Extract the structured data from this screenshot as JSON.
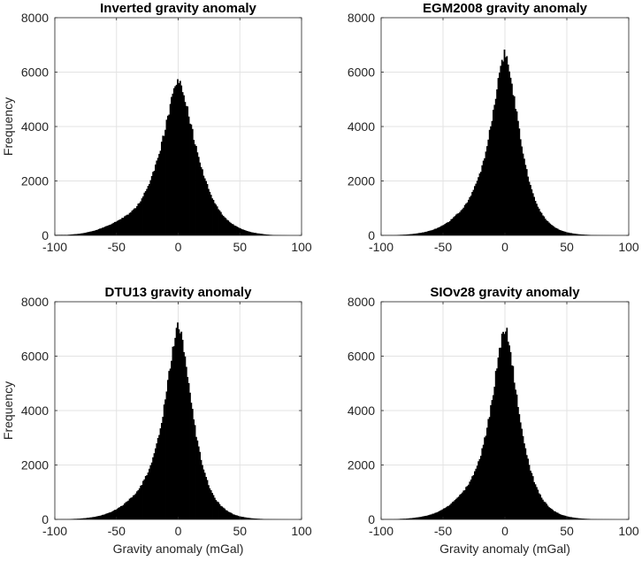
{
  "chart_data": [
    {
      "type": "bar",
      "title": "Inverted gravity anomaly",
      "xlabel": "",
      "ylabel": "Frequency",
      "xlim": [
        -100,
        100
      ],
      "ylim": [
        0,
        8000
      ],
      "xticks": [
        -100,
        -50,
        0,
        50,
        100
      ],
      "yticks": [
        0,
        2000,
        4000,
        6000,
        8000
      ],
      "xtick_labels": [
        "-100",
        "-50",
        "0",
        "50",
        "100"
      ],
      "ytick_labels": [
        "0",
        "2000",
        "4000",
        "6000",
        "8000"
      ],
      "grid": true,
      "bin_width": 1,
      "x": [
        -90,
        -85,
        -80,
        -75,
        -70,
        -65,
        -60,
        -55,
        -50,
        -45,
        -40,
        -35,
        -30,
        -25,
        -20,
        -15,
        -10,
        -5,
        -2,
        0,
        2,
        5,
        10,
        15,
        20,
        25,
        30,
        35,
        40,
        45,
        50,
        55,
        60,
        65,
        70,
        75,
        80,
        85,
        90
      ],
      "values": [
        20,
        40,
        60,
        100,
        150,
        220,
        300,
        400,
        520,
        650,
        800,
        1000,
        1300,
        1750,
        2350,
        3100,
        4050,
        5050,
        5550,
        5700,
        5600,
        5150,
        4100,
        3100,
        2300,
        1650,
        1150,
        800,
        550,
        380,
        260,
        170,
        110,
        70,
        40,
        20,
        10,
        5,
        0
      ]
    },
    {
      "type": "bar",
      "title": "EGM2008 gravity anomaly",
      "xlabel": "",
      "ylabel": "",
      "xlim": [
        -100,
        100
      ],
      "ylim": [
        0,
        8000
      ],
      "xticks": [
        -100,
        -50,
        0,
        50,
        100
      ],
      "yticks": [
        0,
        2000,
        4000,
        6000,
        8000
      ],
      "xtick_labels": [
        "-100",
        "-50",
        "0",
        "50",
        "100"
      ],
      "ytick_labels": [
        "0",
        "2000",
        "4000",
        "6000",
        "8000"
      ],
      "grid": true,
      "bin_width": 1,
      "x": [
        -90,
        -85,
        -80,
        -75,
        -70,
        -65,
        -60,
        -55,
        -50,
        -45,
        -40,
        -35,
        -30,
        -25,
        -20,
        -15,
        -10,
        -5,
        -2,
        0,
        2,
        5,
        10,
        15,
        20,
        25,
        30,
        35,
        40,
        45,
        50,
        55,
        60,
        65,
        70,
        75,
        80,
        85,
        90
      ],
      "values": [
        10,
        20,
        30,
        50,
        80,
        120,
        180,
        260,
        380,
        520,
        720,
        950,
        1250,
        1700,
        2300,
        3150,
        4400,
        5850,
        6500,
        6700,
        6500,
        5700,
        4300,
        2900,
        1900,
        1200,
        760,
        480,
        300,
        180,
        110,
        70,
        40,
        25,
        15,
        8,
        4,
        2,
        0
      ]
    },
    {
      "type": "bar",
      "title": "DTU13 gravity anomaly",
      "xlabel": "Gravity anomaly (mGal)",
      "ylabel": "Frequency",
      "xlim": [
        -100,
        100
      ],
      "ylim": [
        0,
        8000
      ],
      "xticks": [
        -100,
        -50,
        0,
        50,
        100
      ],
      "yticks": [
        0,
        2000,
        4000,
        6000,
        8000
      ],
      "xtick_labels": [
        "-100",
        "-50",
        "0",
        "50",
        "100"
      ],
      "ytick_labels": [
        "0",
        "2000",
        "4000",
        "6000",
        "8000"
      ],
      "grid": true,
      "bin_width": 1,
      "x": [
        -90,
        -85,
        -80,
        -75,
        -70,
        -65,
        -60,
        -55,
        -50,
        -45,
        -40,
        -35,
        -30,
        -25,
        -20,
        -15,
        -10,
        -5,
        -2,
        0,
        2,
        5,
        10,
        15,
        20,
        25,
        30,
        35,
        40,
        45,
        50,
        55,
        60,
        65,
        70,
        75,
        80,
        85,
        90
      ],
      "values": [
        10,
        20,
        30,
        50,
        80,
        120,
        180,
        260,
        380,
        520,
        720,
        950,
        1250,
        1700,
        2300,
        3200,
        4500,
        6100,
        6900,
        7100,
        6900,
        6000,
        4400,
        2950,
        1900,
        1200,
        760,
        480,
        300,
        180,
        110,
        70,
        40,
        25,
        15,
        8,
        4,
        2,
        0
      ]
    },
    {
      "type": "bar",
      "title": "SIOv28 gravity anomaly",
      "xlabel": "Gravity anomaly (mGal)",
      "ylabel": "",
      "xlim": [
        -100,
        100
      ],
      "ylim": [
        0,
        8000
      ],
      "xticks": [
        -100,
        -50,
        0,
        50,
        100
      ],
      "yticks": [
        0,
        2000,
        4000,
        6000,
        8000
      ],
      "xtick_labels": [
        "-100",
        "-50",
        "0",
        "50",
        "100"
      ],
      "ytick_labels": [
        "0",
        "2000",
        "4000",
        "6000",
        "8000"
      ],
      "grid": true,
      "bin_width": 1,
      "x": [
        -90,
        -85,
        -80,
        -75,
        -70,
        -65,
        -60,
        -55,
        -50,
        -45,
        -40,
        -35,
        -30,
        -25,
        -20,
        -15,
        -10,
        -5,
        -2,
        0,
        2,
        5,
        10,
        15,
        20,
        25,
        30,
        35,
        40,
        45,
        50,
        55,
        60,
        65,
        70,
        75,
        80,
        85,
        90
      ],
      "values": [
        10,
        20,
        30,
        50,
        80,
        120,
        180,
        260,
        380,
        520,
        720,
        950,
        1250,
        1700,
        2300,
        3200,
        4500,
        6100,
        6850,
        7050,
        6850,
        5950,
        4400,
        2950,
        1900,
        1200,
        760,
        480,
        300,
        180,
        110,
        70,
        40,
        25,
        15,
        8,
        4,
        2,
        0
      ]
    }
  ]
}
